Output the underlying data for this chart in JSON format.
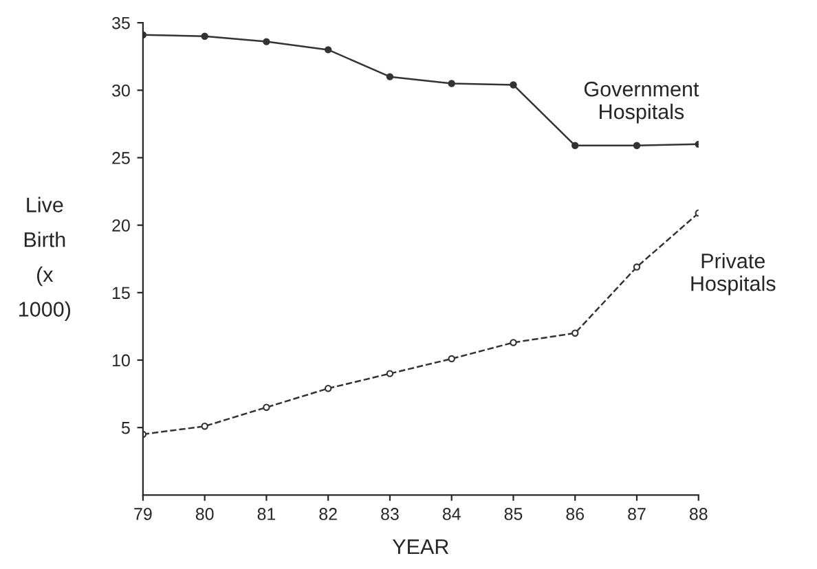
{
  "chart_data": {
    "type": "line",
    "xlabel": "YEAR",
    "ylabel": "Live\nBirth\n(x\n1000)",
    "x": [
      79,
      80,
      81,
      82,
      83,
      84,
      85,
      86,
      87,
      88
    ],
    "series": [
      {
        "name": "Government\nHospitals",
        "color": "#333333",
        "line_style": "solid",
        "marker": "circle",
        "values": [
          34.1,
          34.0,
          33.6,
          33.0,
          31.0,
          30.5,
          30.4,
          25.9,
          25.9,
          26.0
        ]
      },
      {
        "name": "Private\nHospitals",
        "color": "#333333",
        "line_style": "dashed",
        "marker": "circle",
        "values": [
          4.5,
          5.1,
          6.5,
          7.9,
          9.0,
          10.1,
          11.3,
          12.0,
          16.9,
          20.9
        ]
      }
    ],
    "xlim": [
      79,
      88
    ],
    "ylim": [
      0,
      35
    ],
    "xticks": [
      79,
      80,
      81,
      82,
      83,
      84,
      85,
      86,
      87,
      88
    ],
    "yticks": [
      5,
      10,
      15,
      20,
      25,
      30,
      35
    ],
    "grid": false,
    "legend": false
  }
}
